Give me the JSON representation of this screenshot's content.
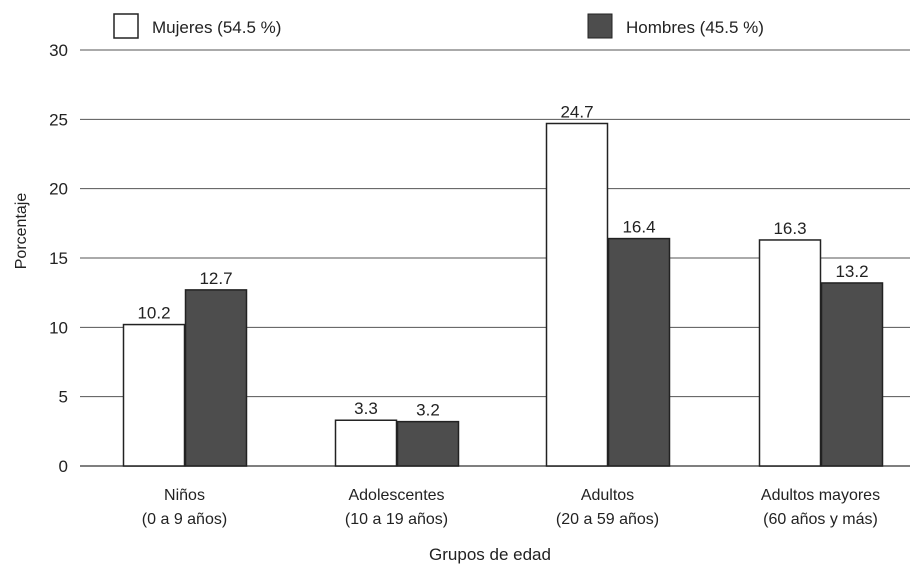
{
  "chart_data": {
    "type": "bar",
    "categories": [
      [
        "Niños",
        "(0 a 9 años)"
      ],
      [
        "Adolescentes",
        "(10 a 19 años)"
      ],
      [
        "Adultos",
        "(20 a 59 años)"
      ],
      [
        "Adultos mayores",
        "(60 años y más)"
      ]
    ],
    "series": [
      {
        "name": "Mujeres (54.5 %)",
        "values": [
          10.2,
          3.3,
          24.7,
          16.3
        ],
        "labels": [
          "10.2",
          "3.3",
          "24.7",
          "16.3"
        ],
        "color": "#ffffff"
      },
      {
        "name": "Hombres (45.5 %)",
        "values": [
          12.7,
          3.2,
          16.4,
          13.2
        ],
        "labels": [
          "12.7",
          "3.2",
          "16.4",
          "13.2"
        ],
        "color": "#4d4d4d"
      }
    ],
    "xlabel": "Grupos de edad",
    "ylabel": "Porcentaje",
    "ylim": [
      0,
      30
    ],
    "yticks": [
      "0",
      "5",
      "10",
      "15",
      "20",
      "25",
      "30"
    ],
    "grid": true,
    "legend": "top"
  }
}
